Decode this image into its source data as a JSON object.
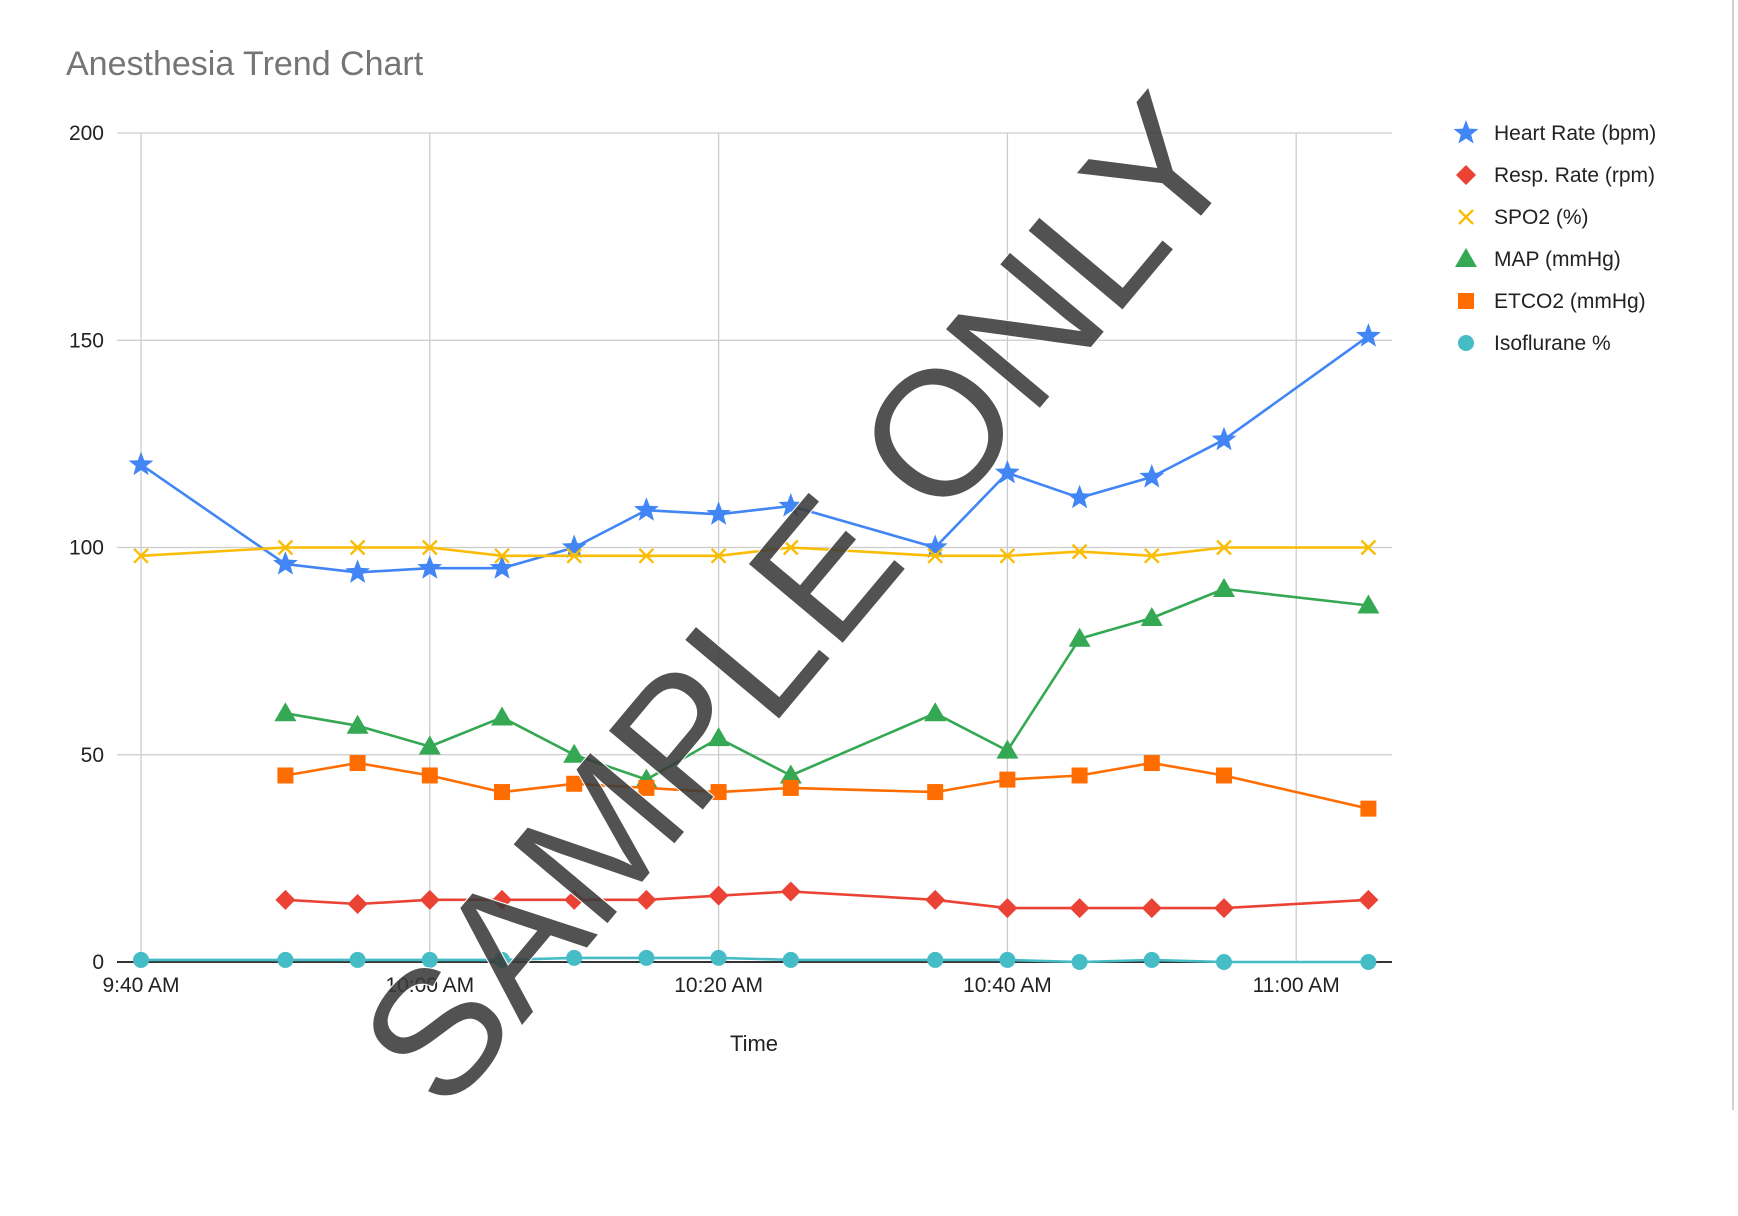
{
  "chart_data": {
    "type": "line",
    "title": "Anesthesia Trend Chart",
    "xlabel": "Time",
    "ylabel": "",
    "xlim": [
      "9:40 AM",
      "11:05 AM"
    ],
    "ylim": [
      0,
      200
    ],
    "y_ticks": [
      0,
      50,
      100,
      150,
      200
    ],
    "x_ticks": [
      "9:40 AM",
      "10:00 AM",
      "10:20 AM",
      "10:40 AM",
      "11:00 AM"
    ],
    "grid": true,
    "legend_position": "right",
    "series": [
      {
        "name": "Heart Rate (bpm)",
        "color": "#4285f4",
        "marker": "star",
        "points": [
          [
            "9:40 AM",
            120
          ],
          [
            "9:50 AM",
            96
          ],
          [
            "9:55 AM",
            94
          ],
          [
            "10:00 AM",
            95
          ],
          [
            "10:05 AM",
            95
          ],
          [
            "10:10 AM",
            100
          ],
          [
            "10:15 AM",
            109
          ],
          [
            "10:20 AM",
            108
          ],
          [
            "10:25 AM",
            110
          ],
          [
            "10:35 AM",
            100
          ],
          [
            "10:40 AM",
            118
          ],
          [
            "10:45 AM",
            112
          ],
          [
            "10:50 AM",
            117
          ],
          [
            "10:55 AM",
            126
          ],
          [
            "11:05 AM",
            151
          ]
        ]
      },
      {
        "name": "Resp. Rate (rpm)",
        "color": "#ea4335",
        "marker": "diamond",
        "points": [
          [
            "9:50 AM",
            15
          ],
          [
            "9:55 AM",
            14
          ],
          [
            "10:00 AM",
            15
          ],
          [
            "10:05 AM",
            15
          ],
          [
            "10:10 AM",
            15
          ],
          [
            "10:15 AM",
            15
          ],
          [
            "10:20 AM",
            16
          ],
          [
            "10:25 AM",
            17
          ],
          [
            "10:35 AM",
            15
          ],
          [
            "10:40 AM",
            13
          ],
          [
            "10:45 AM",
            13
          ],
          [
            "10:50 AM",
            13
          ],
          [
            "10:55 AM",
            13
          ],
          [
            "11:05 AM",
            15
          ]
        ]
      },
      {
        "name": "SPO2 (%)",
        "color": "#fbbc04",
        "marker": "x",
        "points": [
          [
            "9:40 AM",
            98
          ],
          [
            "9:50 AM",
            100
          ],
          [
            "9:55 AM",
            100
          ],
          [
            "10:00 AM",
            100
          ],
          [
            "10:05 AM",
            98
          ],
          [
            "10:10 AM",
            98
          ],
          [
            "10:15 AM",
            98
          ],
          [
            "10:20 AM",
            98
          ],
          [
            "10:25 AM",
            100
          ],
          [
            "10:35 AM",
            98
          ],
          [
            "10:40 AM",
            98
          ],
          [
            "10:45 AM",
            99
          ],
          [
            "10:50 AM",
            98
          ],
          [
            "10:55 AM",
            100
          ],
          [
            "11:05 AM",
            100
          ]
        ]
      },
      {
        "name": "MAP (mmHg)",
        "color": "#34a853",
        "marker": "triangle",
        "points": [
          [
            "9:50 AM",
            60
          ],
          [
            "9:55 AM",
            57
          ],
          [
            "10:00 AM",
            52
          ],
          [
            "10:05 AM",
            59
          ],
          [
            "10:10 AM",
            50
          ],
          [
            "10:15 AM",
            44
          ],
          [
            "10:20 AM",
            54
          ],
          [
            "10:25 AM",
            45
          ],
          [
            "10:35 AM",
            60
          ],
          [
            "10:40 AM",
            51
          ],
          [
            "10:45 AM",
            78
          ],
          [
            "10:50 AM",
            83
          ],
          [
            "10:55 AM",
            90
          ],
          [
            "11:05 AM",
            86
          ]
        ]
      },
      {
        "name": "ETCO2 (mmHg)",
        "color": "#ff6d01",
        "marker": "square",
        "points": [
          [
            "9:50 AM",
            45
          ],
          [
            "9:55 AM",
            48
          ],
          [
            "10:00 AM",
            45
          ],
          [
            "10:05 AM",
            41
          ],
          [
            "10:10 AM",
            43
          ],
          [
            "10:15 AM",
            42
          ],
          [
            "10:20 AM",
            41
          ],
          [
            "10:25 AM",
            42
          ],
          [
            "10:35 AM",
            41
          ],
          [
            "10:40 AM",
            44
          ],
          [
            "10:45 AM",
            45
          ],
          [
            "10:50 AM",
            48
          ],
          [
            "10:55 AM",
            45
          ],
          [
            "11:05 AM",
            37
          ]
        ]
      },
      {
        "name": "Isoflurane %",
        "color": "#46bdc6",
        "marker": "circle",
        "points": [
          [
            "9:40 AM",
            0.5
          ],
          [
            "9:50 AM",
            0.5
          ],
          [
            "9:55 AM",
            0.5
          ],
          [
            "10:00 AM",
            0.5
          ],
          [
            "10:05 AM",
            0.5
          ],
          [
            "10:10 AM",
            1
          ],
          [
            "10:15 AM",
            1
          ],
          [
            "10:20 AM",
            1
          ],
          [
            "10:25 AM",
            0.5
          ],
          [
            "10:35 AM",
            0.5
          ],
          [
            "10:40 AM",
            0.5
          ],
          [
            "10:45 AM",
            0
          ],
          [
            "10:50 AM",
            0.5
          ],
          [
            "10:55 AM",
            0
          ],
          [
            "11:05 AM",
            0
          ]
        ]
      }
    ],
    "annotations": [
      "SAMPLE ONLY"
    ]
  }
}
